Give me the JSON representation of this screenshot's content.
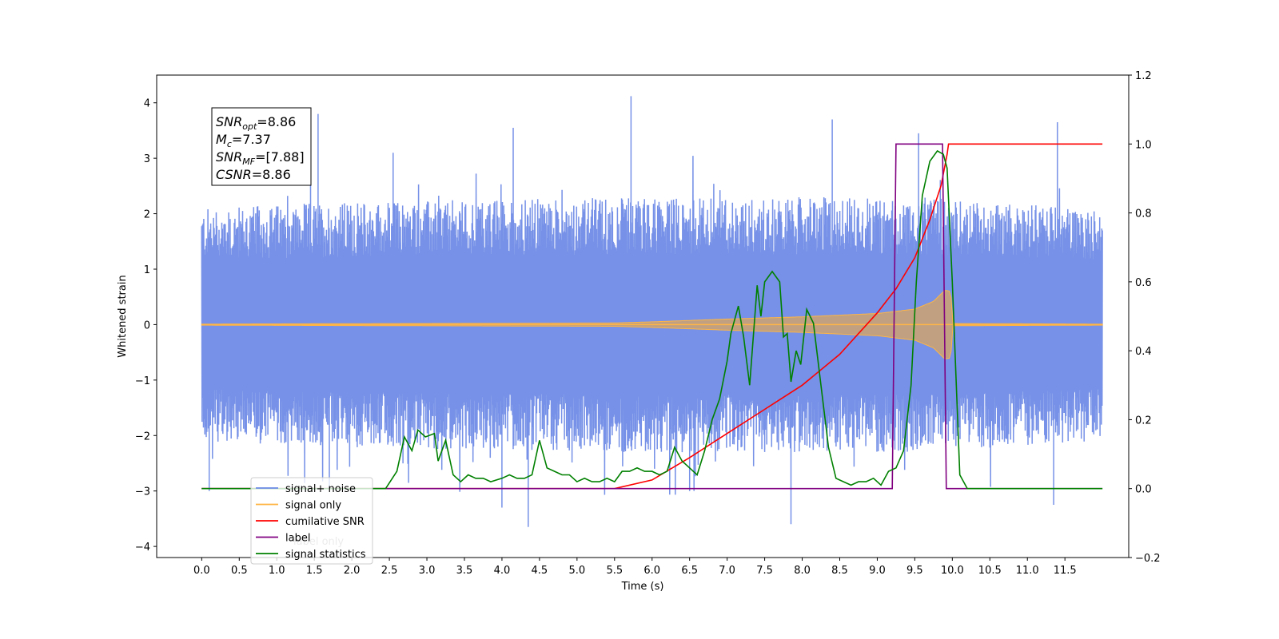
{
  "chart_data": {
    "type": "line",
    "title": "",
    "xlabel": "Time (s)",
    "ylabel": "Whitened strain",
    "xlim": [
      -0.6,
      12.35
    ],
    "ylim": [
      -4.2,
      4.5
    ],
    "y2lim": [
      -0.2,
      1.2
    ],
    "x_ticks": [
      "0.0",
      "0.5",
      "1.0",
      "1.5",
      "2.0",
      "2.5",
      "3.0",
      "3.5",
      "4.0",
      "4.5",
      "5.0",
      "5.5",
      "6.0",
      "6.5",
      "7.0",
      "7.5",
      "8.0",
      "8.5",
      "9.0",
      "9.5",
      "10.0",
      "10.5",
      "11.0",
      "11.5"
    ],
    "y_ticks": [
      "−4",
      "−3",
      "−2",
      "−1",
      "0",
      "1",
      "2",
      "3",
      "4"
    ],
    "y2_ticks": [
      "−0.2",
      "0.0",
      "0.2",
      "0.4",
      "0.6",
      "0.8",
      "1.0",
      "1.2"
    ],
    "grid": false,
    "legend_position": "lower-left",
    "annotation": {
      "lines": [
        {
          "base": "SNR",
          "sub": "opt",
          "value": "=8.86"
        },
        {
          "base": "M",
          "sub": "c",
          "value": "=7.37"
        },
        {
          "base": "SNR",
          "sub": "MF",
          "value": "=[7.88]"
        },
        {
          "base": "CSNR",
          "sub": "",
          "value": "=8.86"
        }
      ]
    },
    "series": [
      {
        "name": "signal+ noise",
        "axis": "left",
        "color": "#6a88e5",
        "kind": "noise",
        "x_range": [
          0.0,
          12.0
        ],
        "envelope": {
          "x": [
            0,
            1.5,
            5.5,
            9.5,
            12.0
          ],
          "upper": [
            2.1,
            2.2,
            2.3,
            2.3,
            2.1
          ],
          "lower": [
            -2.1,
            -2.2,
            -2.3,
            -2.3,
            -2.1
          ]
        },
        "peaks": [
          {
            "x": 1.55,
            "y": 3.8
          },
          {
            "x": 1.45,
            "y": 3.8
          },
          {
            "x": 4.15,
            "y": 3.55
          },
          {
            "x": 5.72,
            "y": 4.12
          },
          {
            "x": 8.4,
            "y": 3.7
          },
          {
            "x": 11.4,
            "y": 3.65
          },
          {
            "x": 9.55,
            "y": 3.45
          },
          {
            "x": 2.55,
            "y": 3.1
          },
          {
            "x": 4.35,
            "y": -3.65
          },
          {
            "x": 4.0,
            "y": -3.3
          },
          {
            "x": 7.85,
            "y": -3.6
          },
          {
            "x": 6.5,
            "y": -3.0
          },
          {
            "x": 11.35,
            "y": -3.25
          },
          {
            "x": 0.1,
            "y": -3.0
          },
          {
            "x": 1.7,
            "y": -2.95
          }
        ]
      },
      {
        "name": "signal only",
        "axis": "left",
        "color": "#ffb545",
        "kind": "chirp",
        "x_range": [
          0.0,
          12.0
        ],
        "envelope": {
          "x": [
            0,
            5.5,
            6.0,
            7.0,
            8.0,
            9.0,
            9.5,
            9.75,
            9.9,
            9.98,
            10.0,
            12.0
          ],
          "amp": [
            0.01,
            0.03,
            0.05,
            0.1,
            0.14,
            0.2,
            0.28,
            0.42,
            0.62,
            0.6,
            0.02,
            0.01
          ]
        }
      },
      {
        "name": "cumilative SNR",
        "axis": "right",
        "color": "#ff0000",
        "x": [
          0.0,
          5.5,
          6.0,
          6.5,
          7.0,
          7.5,
          8.0,
          8.5,
          9.0,
          9.25,
          9.5,
          9.7,
          9.85,
          9.93,
          9.95,
          12.0
        ],
        "y": [
          0.0,
          0.0,
          0.025,
          0.09,
          0.16,
          0.23,
          0.3,
          0.39,
          0.51,
          0.58,
          0.67,
          0.78,
          0.88,
          0.97,
          1.0,
          1.0
        ]
      },
      {
        "name": "label",
        "axis": "right",
        "color": "#800080",
        "x": [
          0.0,
          9.2,
          9.25,
          9.87,
          9.92,
          12.0
        ],
        "y": [
          0.0,
          0.0,
          1.0,
          1.0,
          0.0,
          0.0
        ]
      },
      {
        "name": "signal statistics",
        "axis": "right",
        "color": "#008000",
        "x": [
          0.0,
          2.25,
          2.45,
          2.6,
          2.7,
          2.8,
          2.88,
          2.98,
          3.1,
          3.15,
          3.25,
          3.35,
          3.45,
          3.55,
          3.65,
          3.75,
          3.85,
          4.0,
          4.1,
          4.2,
          4.3,
          4.4,
          4.5,
          4.6,
          4.7,
          4.8,
          4.9,
          5.0,
          5.1,
          5.2,
          5.3,
          5.4,
          5.5,
          5.6,
          5.7,
          5.8,
          5.9,
          6.0,
          6.1,
          6.2,
          6.3,
          6.4,
          6.5,
          6.6,
          6.7,
          6.8,
          6.9,
          7.0,
          7.05,
          7.15,
          7.22,
          7.3,
          7.4,
          7.45,
          7.5,
          7.6,
          7.7,
          7.75,
          7.8,
          7.85,
          7.92,
          7.98,
          8.06,
          8.15,
          8.25,
          8.35,
          8.45,
          8.55,
          8.65,
          8.75,
          8.85,
          8.95,
          9.05,
          9.15,
          9.25,
          9.35,
          9.45,
          9.52,
          9.6,
          9.7,
          9.8,
          9.88,
          9.93,
          10.0,
          10.1,
          10.2,
          10.5,
          12.0
        ],
        "y": [
          0.0,
          0.0,
          0.0,
          0.05,
          0.15,
          0.11,
          0.17,
          0.15,
          0.16,
          0.08,
          0.14,
          0.04,
          0.02,
          0.04,
          0.03,
          0.03,
          0.02,
          0.03,
          0.04,
          0.03,
          0.03,
          0.04,
          0.14,
          0.06,
          0.05,
          0.04,
          0.04,
          0.02,
          0.03,
          0.02,
          0.02,
          0.03,
          0.02,
          0.05,
          0.05,
          0.06,
          0.05,
          0.05,
          0.04,
          0.05,
          0.12,
          0.08,
          0.06,
          0.04,
          0.11,
          0.2,
          0.26,
          0.37,
          0.45,
          0.53,
          0.44,
          0.3,
          0.59,
          0.5,
          0.6,
          0.63,
          0.6,
          0.44,
          0.45,
          0.31,
          0.4,
          0.36,
          0.52,
          0.48,
          0.3,
          0.12,
          0.03,
          0.02,
          0.01,
          0.02,
          0.02,
          0.03,
          0.01,
          0.05,
          0.06,
          0.11,
          0.3,
          0.6,
          0.85,
          0.95,
          0.98,
          0.97,
          0.93,
          0.6,
          0.04,
          0.0,
          0.0,
          0.0
        ]
      }
    ],
    "legend_entries": [
      {
        "label": "signal+ noise",
        "color": "#6a88e5"
      },
      {
        "label": "signal only",
        "color": "#ffb545"
      },
      {
        "label": "cumilative SNR",
        "color": "#ff0000"
      },
      {
        "label": "label",
        "color": "#800080"
      },
      {
        "label": "signal statistics",
        "color": "#008000"
      }
    ],
    "ghost_legend_entries": [
      {
        "label": "label only",
        "color": "#800080"
      }
    ]
  }
}
